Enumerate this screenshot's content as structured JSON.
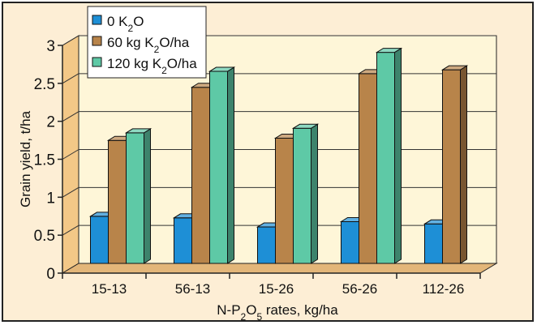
{
  "chart_data": {
    "type": "bar",
    "categories": [
      "15-13",
      "56-13",
      "15-26",
      "56-26",
      "112-26"
    ],
    "series": [
      {
        "name": "0 K2O",
        "name_parts": [
          "0 K",
          "2",
          "O"
        ],
        "color": "#1e8fd6",
        "values": [
          0.62,
          0.6,
          0.48,
          0.55,
          0.52
        ]
      },
      {
        "name": "60 kg K2O/ha",
        "name_parts": [
          "60 kg K",
          "2",
          "O/ha"
        ],
        "color": "#b8844a",
        "values": [
          1.62,
          2.32,
          1.65,
          2.5,
          2.55
        ]
      },
      {
        "name": "120 kg K2O/ha",
        "name_parts": [
          "120 kg K",
          "2",
          "O/ha"
        ],
        "color": "#5ec9a6",
        "values": [
          1.72,
          2.53,
          1.78,
          2.78,
          null
        ]
      }
    ],
    "yticks": [
      "0",
      "0.5",
      "1",
      "1.5",
      "2",
      "2.5",
      "3"
    ],
    "ylim": [
      0,
      3
    ],
    "ylabel": "Grain yield, t/ha",
    "xlabel": "N-P2O5 rates, kg/ha",
    "xlabel_parts": [
      "N-P",
      "2",
      "O",
      "5",
      " rates, kg/ha"
    ],
    "legend_position": "top-left",
    "grid": true,
    "colors": {
      "wall": "#fef6d8",
      "side_wall": "#f3c887",
      "floor": "#e3b679",
      "frame_bg": "#fdeed5"
    }
  }
}
